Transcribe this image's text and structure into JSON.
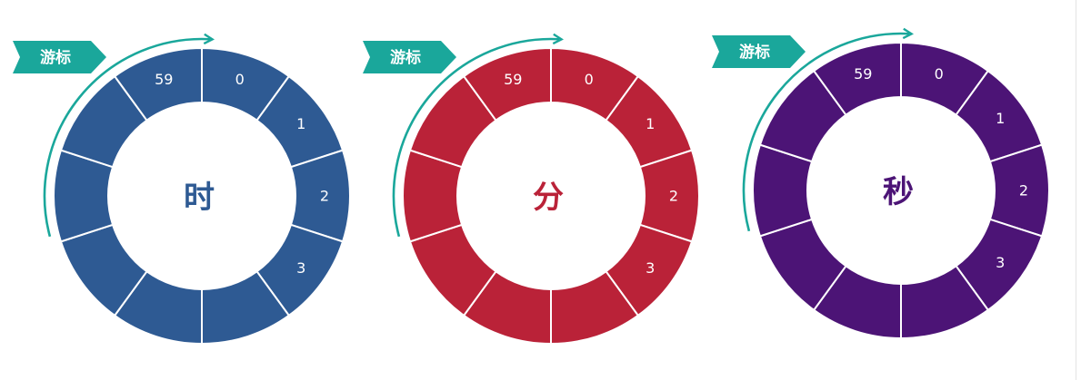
{
  "dials": [
    {
      "id": "hour",
      "center_label": "时",
      "color": "#2e5a93",
      "tag_label": "游标",
      "tag_color": "#1aa79b",
      "arrow_color": "#1aa79b",
      "segment_labels": [
        "0",
        "1",
        "2",
        "3",
        "",
        "",
        "",
        "",
        "",
        "59"
      ]
    },
    {
      "id": "minute",
      "center_label": "分",
      "color": "#ba2238",
      "tag_label": "游标",
      "tag_color": "#1aa79b",
      "arrow_color": "#1aa79b",
      "segment_labels": [
        "0",
        "1",
        "2",
        "3",
        "",
        "",
        "",
        "",
        "",
        "59"
      ]
    },
    {
      "id": "second",
      "center_label": "秒",
      "color": "#4c1476",
      "tag_label": "游标",
      "tag_color": "#1aa79b",
      "arrow_color": "#1aa79b",
      "segment_labels": [
        "0",
        "1",
        "2",
        "3",
        "",
        "",
        "",
        "",
        "",
        "59"
      ]
    }
  ]
}
